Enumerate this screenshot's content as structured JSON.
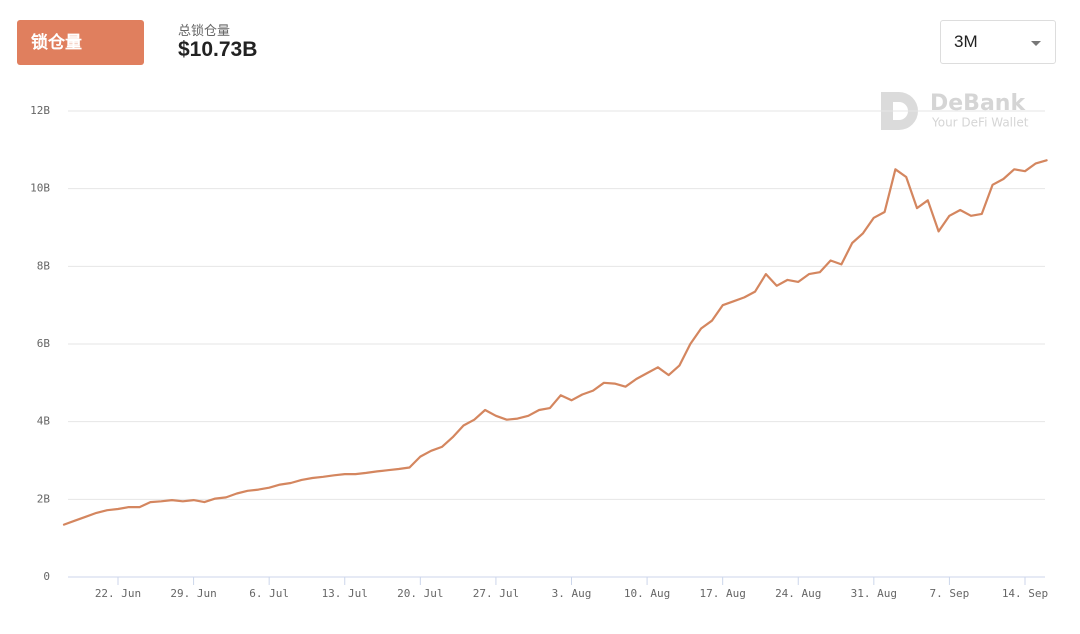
{
  "header": {
    "button": "锁仓量",
    "label": "总锁仓量",
    "value": "$10.73B",
    "range": "3M"
  },
  "watermark": {
    "brand": "DeBank",
    "tagline": "Your DeFi Wallet"
  },
  "chart_data": {
    "type": "line",
    "categories": [
      null,
      null,
      null,
      null,
      null,
      "22. Jun",
      null,
      null,
      null,
      null,
      null,
      null,
      "29. Jun",
      null,
      null,
      null,
      null,
      null,
      null,
      "6. Jul",
      null,
      null,
      null,
      null,
      null,
      null,
      "13. Jul",
      null,
      null,
      null,
      null,
      null,
      null,
      "20. Jul",
      null,
      null,
      null,
      null,
      null,
      null,
      "27. Jul",
      null,
      null,
      null,
      null,
      null,
      null,
      "3. Aug",
      null,
      null,
      null,
      null,
      null,
      null,
      "10. Aug",
      null,
      null,
      null,
      null,
      null,
      null,
      "17. Aug",
      null,
      null,
      null,
      null,
      null,
      null,
      "24. Aug",
      null,
      null,
      null,
      null,
      null,
      null,
      "31. Aug",
      null,
      null,
      null,
      null,
      null,
      null,
      "7. Sep",
      null,
      null,
      null,
      null,
      null,
      null,
      "14. Sep",
      null,
      null
    ],
    "series": [
      {
        "color": "#d4865f",
        "values": [
          1.35,
          1.45,
          1.55,
          1.65,
          1.72,
          1.75,
          1.8,
          1.8,
          1.93,
          1.95,
          1.98,
          1.95,
          1.98,
          1.93,
          2.02,
          2.05,
          2.15,
          2.22,
          2.25,
          2.3,
          2.38,
          2.42,
          2.5,
          2.55,
          2.58,
          2.62,
          2.65,
          2.65,
          2.68,
          2.72,
          2.75,
          2.78,
          2.82,
          3.1,
          3.25,
          3.35,
          3.6,
          3.9,
          4.05,
          4.3,
          4.15,
          4.05,
          4.08,
          4.15,
          4.3,
          4.35,
          4.68,
          4.55,
          4.7,
          4.8,
          5.0,
          4.98,
          4.9,
          5.1,
          5.25,
          5.4,
          5.2,
          5.45,
          6.0,
          6.4,
          6.6,
          7.0,
          7.1,
          7.2,
          7.35,
          7.8,
          7.5,
          7.65,
          7.6,
          7.8,
          7.85,
          8.15,
          8.05,
          8.6,
          8.85,
          9.25,
          9.4,
          10.5,
          10.3,
          9.5,
          9.7,
          8.9,
          9.3,
          9.45,
          9.3,
          9.35,
          10.1,
          10.25,
          10.5,
          10.45,
          10.65,
          10.73
        ]
      }
    ],
    "ylim": [
      0,
      12
    ],
    "yticks": [
      0,
      {
        "value": 2,
        "label": "2B"
      },
      {
        "value": 4,
        "label": "4B"
      },
      {
        "value": 6,
        "label": "6B"
      },
      {
        "value": 8,
        "label": "8B"
      },
      {
        "value": 10,
        "label": "10B"
      },
      {
        "value": 12,
        "label": "12B"
      }
    ],
    "grid": true
  }
}
